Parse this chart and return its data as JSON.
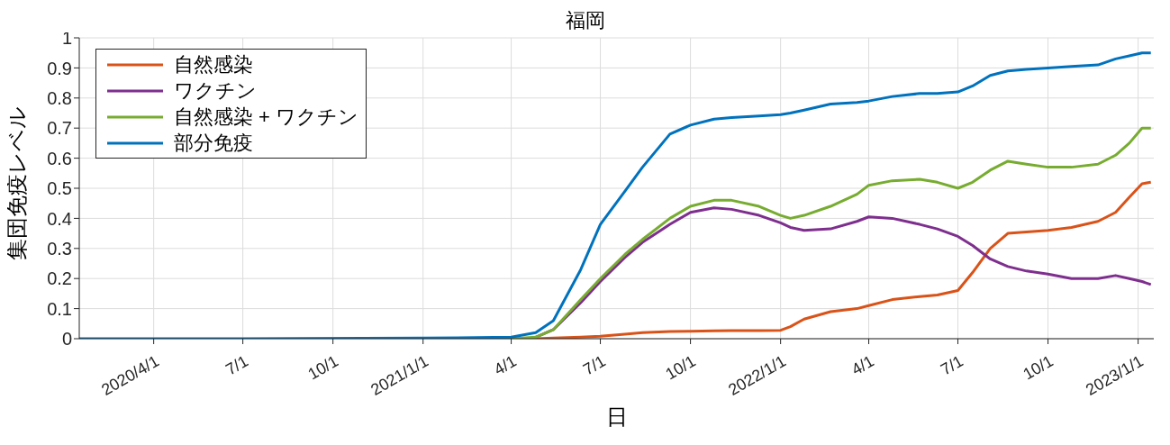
{
  "chart_data": {
    "type": "line",
    "title": "福岡",
    "xlabel": "日",
    "ylabel": "集団免疫レベル",
    "x": [
      "2020-01-16",
      "2020-07-01",
      "2021-01-01",
      "2021-04-01",
      "2021-04-26",
      "2021-05-14",
      "2021-06-11",
      "2021-07-01",
      "2021-07-26",
      "2021-08-13",
      "2021-09-10",
      "2021-10-01",
      "2021-10-25",
      "2021-11-12",
      "2021-12-10",
      "2022-01-01",
      "2022-01-11",
      "2022-01-25",
      "2022-02-21",
      "2022-03-20",
      "2022-04-01",
      "2022-04-25",
      "2022-05-23",
      "2022-06-10",
      "2022-07-01",
      "2022-07-16",
      "2022-08-03",
      "2022-08-21",
      "2022-09-09",
      "2022-10-01",
      "2022-10-25",
      "2022-11-21",
      "2022-12-09",
      "2022-12-23",
      "2023-01-05",
      "2023-01-14"
    ],
    "series": [
      {
        "name": "自然感染",
        "color": "#d95319",
        "values": [
          null,
          null,
          null,
          0,
          0,
          0.002,
          0.005,
          0.008,
          0.015,
          0.02,
          0.024,
          0.025,
          0.026,
          0.027,
          0.027,
          0.028,
          0.04,
          0.065,
          0.09,
          0.1,
          0.11,
          0.13,
          0.14,
          0.145,
          0.16,
          0.22,
          0.3,
          0.35,
          0.355,
          0.36,
          0.37,
          0.39,
          0.42,
          0.47,
          0.515,
          0.52
        ]
      },
      {
        "name": "ワクチン",
        "color": "#7e2f8e",
        "values": [
          null,
          null,
          null,
          null,
          0.005,
          0.03,
          0.12,
          0.19,
          0.27,
          0.32,
          0.38,
          0.42,
          0.435,
          0.43,
          0.41,
          0.385,
          0.37,
          0.36,
          0.365,
          0.39,
          0.405,
          0.4,
          0.38,
          0.365,
          0.34,
          0.31,
          0.265,
          0.24,
          0.225,
          0.215,
          0.2,
          0.2,
          0.21,
          0.2,
          0.19,
          0.18
        ]
      },
      {
        "name": "自然感染 + ワクチン",
        "color": "#77ac30",
        "values": [
          null,
          null,
          0,
          0,
          0.005,
          0.03,
          0.13,
          0.2,
          0.28,
          0.33,
          0.4,
          0.44,
          0.46,
          0.46,
          0.44,
          0.41,
          0.4,
          0.41,
          0.44,
          0.48,
          0.51,
          0.525,
          0.53,
          0.52,
          0.5,
          0.52,
          0.56,
          0.59,
          0.58,
          0.57,
          0.57,
          0.58,
          0.61,
          0.65,
          0.7,
          0.7
        ]
      },
      {
        "name": "部分免疫",
        "color": "#0072bd",
        "values": [
          0,
          0,
          0.002,
          0.005,
          0.02,
          0.06,
          0.23,
          0.38,
          0.49,
          0.57,
          0.68,
          0.71,
          0.73,
          0.735,
          0.74,
          0.745,
          0.75,
          0.76,
          0.78,
          0.785,
          0.79,
          0.805,
          0.815,
          0.815,
          0.82,
          0.84,
          0.875,
          0.89,
          0.895,
          0.9,
          0.905,
          0.91,
          0.93,
          0.94,
          0.95,
          0.95
        ]
      }
    ],
    "xlim": [
      "2020-01-16",
      "2023-01-17"
    ],
    "xticks": [
      {
        "value": "2020-04-01",
        "label": "2020/4/1"
      },
      {
        "value": "2020-07-01",
        "label": "7/1"
      },
      {
        "value": "2020-10-01",
        "label": "10/1"
      },
      {
        "value": "2021-01-01",
        "label": "2021/1/1"
      },
      {
        "value": "2021-04-01",
        "label": "4/1"
      },
      {
        "value": "2021-07-01",
        "label": "7/1"
      },
      {
        "value": "2021-10-01",
        "label": "10/1"
      },
      {
        "value": "2022-01-01",
        "label": "2022/1/1"
      },
      {
        "value": "2022-04-01",
        "label": "4/1"
      },
      {
        "value": "2022-07-01",
        "label": "7/1"
      },
      {
        "value": "2022-10-01",
        "label": "10/1"
      },
      {
        "value": "2023-01-01",
        "label": "2023/1/1"
      }
    ],
    "ylim": [
      0,
      1
    ],
    "yticks": [
      0,
      0.1,
      0.2,
      0.3,
      0.4,
      0.5,
      0.6,
      0.7,
      0.8,
      0.9,
      1
    ],
    "grid": true,
    "legend": "top left",
    "marker": "none",
    "line_style": "solid"
  }
}
